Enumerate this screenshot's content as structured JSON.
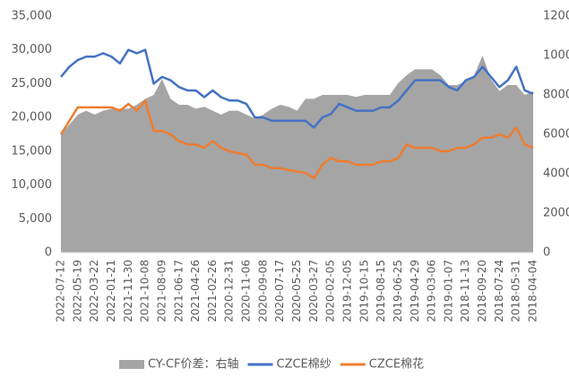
{
  "chart_data": {
    "type": "line",
    "categories": [
      "2022-07-12",
      null,
      "2022-05-19",
      null,
      "2022-03-22",
      null,
      "2022-01-21",
      null,
      "2021-11-30",
      null,
      "2021-10-08",
      null,
      "2021-08-09",
      null,
      "2021-06-17",
      null,
      "2021-04-26",
      null,
      "2021-02-26",
      null,
      "2020-12-31",
      null,
      "2020-11-06",
      null,
      "2020-09-08",
      null,
      "2020-07-17",
      null,
      "2020-05-25",
      null,
      "2020-03-27",
      null,
      "2020-02-05",
      null,
      "2019-12-05",
      null,
      "2019-10-15",
      null,
      "2019-08-15",
      null,
      "2019-06-25",
      null,
      "2019-04-29",
      null,
      "2019-03-06",
      null,
      "2019-01-07",
      null,
      "2018-11-13",
      null,
      "2018-09-20",
      null,
      "2018-07-24",
      null,
      "2018-05-31",
      null,
      "2018-04-04"
    ],
    "series": [
      {
        "name": "CY-CF价差：右轴",
        "type": "area",
        "axis": "y2",
        "color": "#a5a5a5",
        "values": [
          6000,
          6500,
          7000,
          7200,
          7000,
          7200,
          7300,
          7300,
          7300,
          7500,
          7800,
          8000,
          8800,
          7800,
          7500,
          7500,
          7300,
          7400,
          7200,
          7000,
          7200,
          7200,
          7000,
          6800,
          7000,
          7300,
          7500,
          7400,
          7200,
          7800,
          7800,
          8000,
          8000,
          8000,
          8000,
          7900,
          8000,
          8000,
          8000,
          8000,
          8600,
          9000,
          9300,
          9300,
          9300,
          9000,
          8500,
          8500,
          8700,
          9000,
          10000,
          8800,
          8200,
          8500,
          8500,
          8000,
          8200
        ]
      },
      {
        "name": "CZCE棉纱",
        "type": "line",
        "color": "#4472c4",
        "values": [
          26000,
          27500,
          28500,
          29000,
          29000,
          29500,
          29000,
          28000,
          30000,
          29500,
          30000,
          25000,
          26000,
          25500,
          24500,
          24000,
          24000,
          23000,
          24000,
          23000,
          22500,
          22500,
          22000,
          20000,
          20000,
          19500,
          19500,
          19500,
          19500,
          19500,
          18500,
          20000,
          20500,
          22000,
          21500,
          21000,
          21000,
          21000,
          21500,
          21500,
          22500,
          24000,
          25500,
          25500,
          25500,
          25500,
          24500,
          24000,
          25500,
          26000,
          27500,
          26000,
          24500,
          25500,
          27500,
          24000,
          23500
        ]
      },
      {
        "name": "CZCE棉花",
        "type": "line",
        "color": "#ed7d31",
        "values": [
          17500,
          19500,
          21500,
          21500,
          21500,
          21500,
          21500,
          21000,
          22000,
          21000,
          22500,
          18000,
          18000,
          17500,
          16500,
          16000,
          16000,
          15500,
          16500,
          15500,
          15000,
          14700,
          14500,
          13000,
          13000,
          12500,
          12500,
          12200,
          12000,
          11800,
          11000,
          13000,
          14000,
          13500,
          13500,
          13000,
          13000,
          13000,
          13500,
          13500,
          14000,
          16000,
          15500,
          15500,
          15500,
          15000,
          15000,
          15500,
          15500,
          16000,
          17000,
          17000,
          17500,
          17000,
          18500,
          16000,
          15500
        ]
      }
    ],
    "ylim": [
      0,
      35000
    ],
    "yticks": [
      0,
      {
        "value": 5000,
        "label": "5,000"
      },
      {
        "value": 10000,
        "label": "10,000"
      },
      {
        "value": 15000,
        "label": "15,000"
      },
      {
        "value": 20000,
        "label": "20,000"
      },
      {
        "value": 25000,
        "label": "25,000"
      },
      {
        "value": 30000,
        "label": "30,000"
      },
      {
        "value": 35000,
        "label": "35,000"
      }
    ],
    "y2lim": [
      0,
      12000
    ],
    "y2ticks": [
      0,
      2000,
      4000,
      6000,
      8000,
      10000,
      12000
    ],
    "legend": "bottom"
  }
}
